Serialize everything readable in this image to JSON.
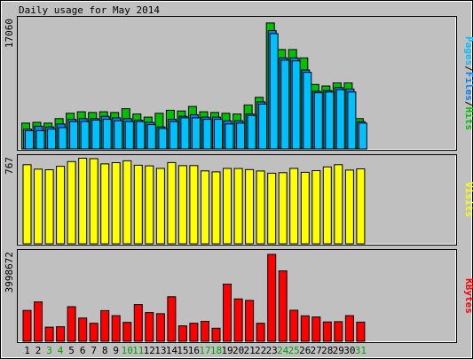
{
  "chart_data": {
    "title": "Daily usage for May 2014",
    "days": [
      "1",
      "2",
      "3",
      "4",
      "5",
      "6",
      "7",
      "8",
      "9",
      "10",
      "11",
      "12",
      "13",
      "14",
      "15",
      "16",
      "17",
      "18",
      "19",
      "20",
      "21",
      "22",
      "23",
      "24",
      "25",
      "26",
      "27",
      "28",
      "29",
      "30",
      "31"
    ],
    "weekend_days": [
      "3",
      "4",
      "10",
      "11",
      "17",
      "18",
      "24",
      "25",
      "31"
    ],
    "colors": {
      "hits": "#00c000",
      "files": "#0080ff",
      "pages": "#00c0ff",
      "visits": "#ffff00",
      "kbytes": "#ff0000",
      "weekday_label": "#000000",
      "weekend_label": "#00a000"
    },
    "panels": [
      {
        "type": "bar",
        "ylabel_max": "17060",
        "ylim": [
          0,
          17060
        ],
        "legend": [
          {
            "text": "Pages",
            "color": "#00c0ff"
          },
          {
            "text": "/",
            "color": "#000000"
          },
          {
            "text": "Files",
            "color": "#0080ff"
          },
          {
            "text": "/",
            "color": "#000000"
          },
          {
            "text": "Hits",
            "color": "#00c000"
          }
        ],
        "series": [
          {
            "name": "Hits",
            "color": "#00c000",
            "values": [
              3400,
              3500,
              3400,
              4000,
              4700,
              4900,
              4800,
              4900,
              4800,
              5300,
              4600,
              4200,
              4700,
              5100,
              5000,
              5600,
              4900,
              4800,
              4700,
              4600,
              5800,
              6800,
              16600,
              13100,
              13100,
              12000,
              8500,
              8300,
              8700,
              8700,
              4000
            ]
          },
          {
            "name": "Files",
            "color": "#0080ff",
            "values": [
              2600,
              3000,
              2900,
              3300,
              3900,
              4000,
              4000,
              4300,
              4100,
              4000,
              3800,
              3500,
              2900,
              3900,
              4300,
              4500,
              4200,
              4200,
              3700,
              3700,
              4600,
              6200,
              15600,
              12000,
              12000,
              10400,
              7600,
              7700,
              8100,
              7900,
              3600
            ]
          },
          {
            "name": "Pages",
            "color": "#00c0ff",
            "values": [
              2400,
              2400,
              2600,
              2800,
              3600,
              3600,
              3800,
              3900,
              3700,
              3600,
              3600,
              3200,
              2700,
              3600,
              4100,
              4100,
              3900,
              3900,
              3300,
              3400,
              4400,
              5900,
              15200,
              11700,
              11600,
              10100,
              7400,
              7500,
              7800,
              7500,
              3400
            ]
          }
        ]
      },
      {
        "type": "bar",
        "ylabel_max": "767",
        "ylim": [
          0,
          767
        ],
        "legend": [
          {
            "text": "Visits",
            "color": "#ffff00"
          }
        ],
        "series": [
          {
            "name": "Visits",
            "color": "#ffff00",
            "values": [
              713,
              673,
              667,
              698,
              741,
              771,
              767,
              720,
              731,
              748,
              708,
              702,
              679,
              732,
              704,
              705,
              657,
              648,
              679,
              678,
              669,
              656,
              636,
              641,
              679,
              644,
              659,
              693,
              713,
              664,
              675
            ]
          }
        ]
      },
      {
        "type": "bar",
        "ylabel_max": "3998672",
        "ylim": [
          0,
          3998672
        ],
        "legend": [
          {
            "text": "KBytes",
            "color": "#ff0000"
          }
        ],
        "series": [
          {
            "name": "KBytes",
            "color": "#ff0000",
            "values": [
              1420000,
              1810000,
              650000,
              670000,
              1590000,
              1070000,
              830000,
              1410000,
              1180000,
              870000,
              1690000,
              1320000,
              1270000,
              2050000,
              710000,
              830000,
              920000,
              600000,
              2630000,
              1950000,
              1880000,
              830000,
              4000000,
              3240000,
              1430000,
              1170000,
              1120000,
              890000,
              900000,
              1180000,
              880000
            ]
          }
        ]
      }
    ]
  }
}
